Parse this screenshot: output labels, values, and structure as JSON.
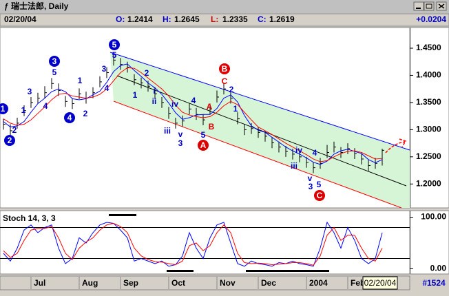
{
  "window": {
    "title": "瑞士法郎, Daily",
    "date": "02/20/04",
    "fields": [
      {
        "label": "O:",
        "value": "1.2414"
      },
      {
        "label": "H:",
        "value": "1.2645"
      },
      {
        "label": "L:",
        "value": "1.2335"
      },
      {
        "label": "C:",
        "value": "1.2619"
      }
    ],
    "change": "+0.0204",
    "date_box": "02/20/04",
    "bar_count": "#1524"
  },
  "chart_data": [
    {
      "type": "ohlc",
      "categories": [
        null,
        null,
        null,
        null,
        "Jul",
        null,
        null,
        null,
        null,
        null,
        null,
        "Aug",
        null,
        null,
        null,
        null,
        null,
        "Sep",
        null,
        null,
        null,
        null,
        null,
        null,
        "Oct",
        null,
        null,
        null,
        null,
        null,
        null,
        "Nov",
        null,
        null,
        null,
        null,
        null,
        "Dec",
        null,
        null,
        null,
        null,
        null,
        null,
        "2004",
        null,
        null,
        null,
        null,
        null,
        "Feb",
        null,
        null,
        null,
        null,
        null
      ],
      "high": [
        1.32,
        1.31,
        1.322,
        1.345,
        1.36,
        1.368,
        1.38,
        1.395,
        1.385,
        1.362,
        1.358,
        1.376,
        1.37,
        1.378,
        1.398,
        1.415,
        1.438,
        1.432,
        1.425,
        1.402,
        1.396,
        1.39,
        1.378,
        1.36,
        1.342,
        1.322,
        1.326,
        1.348,
        1.34,
        1.328,
        1.348,
        1.372,
        1.385,
        1.37,
        1.332,
        1.31,
        1.312,
        1.305,
        1.298,
        1.286,
        1.278,
        1.27,
        1.265,
        1.26,
        1.25,
        1.24,
        1.248,
        1.272,
        1.278,
        1.268,
        1.275,
        1.266,
        1.256,
        1.244,
        1.248,
        1.265
      ],
      "low": [
        1.3,
        1.29,
        1.302,
        1.325,
        1.34,
        1.348,
        1.358,
        1.375,
        1.362,
        1.342,
        1.338,
        1.356,
        1.348,
        1.358,
        1.378,
        1.395,
        1.418,
        1.41,
        1.405,
        1.382,
        1.376,
        1.37,
        1.356,
        1.34,
        1.32,
        1.302,
        1.306,
        1.328,
        1.318,
        1.308,
        1.328,
        1.35,
        1.365,
        1.348,
        1.31,
        1.29,
        1.292,
        1.285,
        1.278,
        1.266,
        1.258,
        1.25,
        1.245,
        1.24,
        1.23,
        1.22,
        1.228,
        1.248,
        1.258,
        1.248,
        1.255,
        1.246,
        1.236,
        1.224,
        1.228,
        1.234
      ],
      "close": [
        1.31,
        1.298,
        1.312,
        1.335,
        1.35,
        1.358,
        1.368,
        1.385,
        1.372,
        1.352,
        1.348,
        1.366,
        1.358,
        1.368,
        1.388,
        1.405,
        1.428,
        1.42,
        1.415,
        1.392,
        1.386,
        1.38,
        1.366,
        1.35,
        1.33,
        1.312,
        1.316,
        1.338,
        1.328,
        1.318,
        1.338,
        1.36,
        1.375,
        1.358,
        1.32,
        1.3,
        1.302,
        1.295,
        1.288,
        1.276,
        1.268,
        1.26,
        1.255,
        1.25,
        1.24,
        1.23,
        1.238,
        1.258,
        1.268,
        1.258,
        1.265,
        1.256,
        1.246,
        1.234,
        1.238,
        1.262
      ],
      "bar_color": "#000000",
      "overlays": [
        {
          "color": "#0000ff",
          "values": [
            1.315,
            1.305,
            1.307,
            1.315,
            1.332,
            1.348,
            1.358,
            1.37,
            1.375,
            1.37,
            1.357,
            1.355,
            1.357,
            1.364,
            1.371,
            1.387,
            1.407,
            1.418,
            1.421,
            1.409,
            1.398,
            1.386,
            1.377,
            1.365,
            1.349,
            1.331,
            1.319,
            1.322,
            1.327,
            1.328,
            1.328,
            1.339,
            1.358,
            1.364,
            1.351,
            1.326,
            1.307,
            1.299,
            1.295,
            1.286,
            1.277,
            1.268,
            1.261,
            1.255,
            1.248,
            1.24,
            1.236,
            1.242,
            1.255,
            1.261,
            1.264,
            1.26,
            1.256,
            1.245,
            1.239,
            1.245
          ]
        },
        {
          "color": "#ff0000",
          "values": [
            1.32,
            1.312,
            1.308,
            1.31,
            1.318,
            1.33,
            1.342,
            1.355,
            1.365,
            1.367,
            1.362,
            1.36,
            1.358,
            1.36,
            1.365,
            1.375,
            1.39,
            1.405,
            1.414,
            1.413,
            1.405,
            1.395,
            1.385,
            1.375,
            1.362,
            1.345,
            1.332,
            1.327,
            1.324,
            1.322,
            1.324,
            1.332,
            1.344,
            1.352,
            1.346,
            1.332,
            1.318,
            1.305,
            1.298,
            1.291,
            1.283,
            1.275,
            1.268,
            1.261,
            1.254,
            1.246,
            1.241,
            1.243,
            1.25,
            1.256,
            1.26,
            1.261,
            1.258,
            1.252,
            1.246,
            1.247
          ]
        }
      ],
      "ylim": [
        1.156,
        1.488
      ],
      "yticks": [
        {
          "value": 1.2,
          "label": "1.2000"
        },
        {
          "value": 1.25,
          "label": "1.2500"
        },
        {
          "value": 1.3,
          "label": "1.3000"
        },
        {
          "value": 1.35,
          "label": "1.3500"
        },
        {
          "value": 1.4,
          "label": "1.4000"
        },
        {
          "value": 1.45,
          "label": "1.4500"
        }
      ],
      "annotations": [
        {
          "text": "1",
          "color": "#0000cc",
          "circled": true
        },
        {
          "text": "2",
          "color": "#0000cc",
          "circled": true
        },
        {
          "text": "3",
          "color": "#0000cc",
          "circled": true
        },
        {
          "text": "4",
          "color": "#0000cc",
          "circled": true
        },
        {
          "text": "5",
          "color": "#0000cc",
          "circled": true
        },
        {
          "text": "B",
          "color": "#dd0000",
          "circled": true
        },
        {
          "text": "A",
          "color": "#dd0000",
          "circled": true
        },
        {
          "text": "C",
          "color": "#dd0000",
          "circled": true
        },
        {
          "text": "2",
          "color": "#0000cc"
        },
        {
          "text": "1",
          "color": "#0000cc"
        },
        {
          "text": "3",
          "color": "#0000cc"
        },
        {
          "text": "4",
          "color": "#0000cc"
        },
        {
          "text": "5",
          "color": "#0000cc"
        },
        {
          "text": "1",
          "color": "#0000cc"
        },
        {
          "text": "2",
          "color": "#0000cc"
        },
        {
          "text": "3",
          "color": "#0000cc"
        },
        {
          "text": "4",
          "color": "#0000cc"
        },
        {
          "text": "5",
          "color": "#0000cc"
        },
        {
          "text": "1",
          "color": "#0000cc"
        },
        {
          "text": "2",
          "color": "#0000cc"
        },
        {
          "text": "i",
          "color": "#0000cc"
        },
        {
          "text": "ii",
          "color": "#0000cc"
        },
        {
          "text": "iii",
          "color": "#0000cc"
        },
        {
          "text": "iv",
          "color": "#0000cc"
        },
        {
          "text": "v",
          "color": "#0000cc"
        },
        {
          "text": "3",
          "color": "#0000cc"
        },
        {
          "text": "4",
          "color": "#0000cc"
        },
        {
          "text": "5",
          "color": "#0000cc"
        },
        {
          "text": "2",
          "color": "#0000cc"
        },
        {
          "text": "1",
          "color": "#0000cc"
        },
        {
          "text": "iv",
          "color": "#0000cc"
        },
        {
          "text": "4",
          "color": "#0000cc"
        },
        {
          "text": "iii",
          "color": "#0000cc"
        },
        {
          "text": "v",
          "color": "#0000cc"
        },
        {
          "text": "3",
          "color": "#0000cc"
        },
        {
          "text": "5",
          "color": "#0000cc"
        },
        {
          "text": "A",
          "color": "#dd0000"
        },
        {
          "text": "B",
          "color": "#dd0000"
        },
        {
          "text": "C",
          "color": "#dd0000"
        }
      ]
    },
    {
      "type": "line",
      "title": "Stoch 14, 3, 3",
      "series": [
        {
          "color": "#0000ff",
          "values": [
            30,
            15,
            40,
            75,
            85,
            70,
            80,
            85,
            40,
            10,
            20,
            60,
            50,
            70,
            85,
            90,
            88,
            75,
            60,
            15,
            20,
            15,
            10,
            15,
            5,
            8,
            25,
            70,
            40,
            20,
            60,
            85,
            90,
            50,
            10,
            5,
            15,
            10,
            8,
            5,
            12,
            10,
            15,
            10,
            8,
            5,
            40,
            90,
            70,
            40,
            80,
            55,
            20,
            10,
            20,
            70
          ]
        },
        {
          "color": "#ff0000",
          "values": [
            35,
            22,
            30,
            55,
            75,
            78,
            78,
            82,
            60,
            30,
            18,
            40,
            52,
            60,
            75,
            85,
            88,
            82,
            70,
            40,
            25,
            18,
            14,
            13,
            10,
            8,
            15,
            45,
            50,
            35,
            45,
            70,
            85,
            70,
            30,
            12,
            10,
            11,
            10,
            8,
            9,
            10,
            12,
            12,
            10,
            7,
            25,
            65,
            80,
            55,
            65,
            65,
            40,
            20,
            15,
            40
          ]
        }
      ],
      "levels": [
        20,
        80
      ],
      "ylim": [
        -10,
        110
      ],
      "yticks": [
        {
          "value": 0,
          "label": "0.00"
        },
        {
          "value": 100,
          "label": "100.00"
        }
      ]
    }
  ]
}
